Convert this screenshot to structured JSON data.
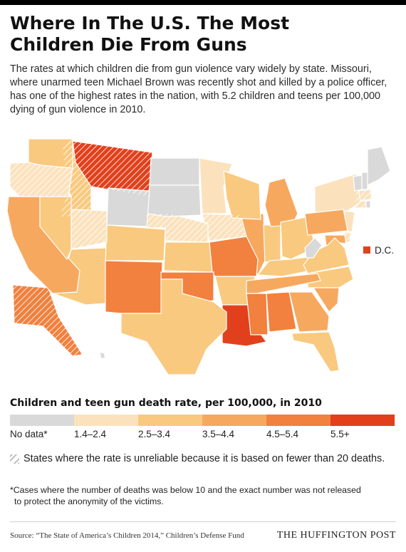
{
  "header": {
    "title_line1": "Where In The U.S. The Most",
    "title_line2": "Children Die From Guns",
    "intro": "The rates at which children die from gun violence vary widely by state. Missouri, where unarmed teen Michael Brown was recently shot and killed by a police officer, has one of the highest rates in the nation, with 5.2 children and teens per 100,000 dying of gun violence in 2010."
  },
  "map": {
    "dc_label": "D.C.",
    "dc_bin": 5,
    "colors": [
      "#d9d9d9",
      "#fbe2bd",
      "#f9c97f",
      "#f7a85f",
      "#f2803e",
      "#e2401c"
    ],
    "hatch_color": "#ffffff",
    "states": [
      {
        "id": "AL",
        "bin": 4,
        "hatched": false
      },
      {
        "id": "AK",
        "bin": 4,
        "hatched": true
      },
      {
        "id": "AZ",
        "bin": 2,
        "hatched": false
      },
      {
        "id": "AR",
        "bin": 2,
        "hatched": false
      },
      {
        "id": "CA",
        "bin": 3,
        "hatched": false
      },
      {
        "id": "CO",
        "bin": 2,
        "hatched": false
      },
      {
        "id": "CT",
        "bin": 1,
        "hatched": true
      },
      {
        "id": "DE",
        "bin": 1,
        "hatched": true
      },
      {
        "id": "FL",
        "bin": 2,
        "hatched": false
      },
      {
        "id": "GA",
        "bin": 3,
        "hatched": false
      },
      {
        "id": "HI",
        "bin": 0,
        "hatched": false
      },
      {
        "id": "ID",
        "bin": 2,
        "hatched": true
      },
      {
        "id": "IL",
        "bin": 3,
        "hatched": false
      },
      {
        "id": "IN",
        "bin": 2,
        "hatched": false
      },
      {
        "id": "IA",
        "bin": 1,
        "hatched": true
      },
      {
        "id": "KS",
        "bin": 2,
        "hatched": false
      },
      {
        "id": "KY",
        "bin": 2,
        "hatched": false
      },
      {
        "id": "LA",
        "bin": 5,
        "hatched": false
      },
      {
        "id": "ME",
        "bin": 0,
        "hatched": false
      },
      {
        "id": "MD",
        "bin": 3,
        "hatched": false
      },
      {
        "id": "MA",
        "bin": 1,
        "hatched": true
      },
      {
        "id": "MI",
        "bin": 3,
        "hatched": false
      },
      {
        "id": "MN",
        "bin": 1,
        "hatched": false
      },
      {
        "id": "MS",
        "bin": 4,
        "hatched": false
      },
      {
        "id": "MO",
        "bin": 4,
        "hatched": false
      },
      {
        "id": "MT",
        "bin": 5,
        "hatched": true
      },
      {
        "id": "NE",
        "bin": 1,
        "hatched": true
      },
      {
        "id": "NV",
        "bin": 2,
        "hatched": false
      },
      {
        "id": "NH",
        "bin": 0,
        "hatched": false
      },
      {
        "id": "NJ",
        "bin": 1,
        "hatched": false
      },
      {
        "id": "NM",
        "bin": 4,
        "hatched": false
      },
      {
        "id": "NY",
        "bin": 1,
        "hatched": false
      },
      {
        "id": "NC",
        "bin": 2,
        "hatched": false
      },
      {
        "id": "ND",
        "bin": 0,
        "hatched": false
      },
      {
        "id": "OH",
        "bin": 2,
        "hatched": false
      },
      {
        "id": "OK",
        "bin": 4,
        "hatched": false
      },
      {
        "id": "OR",
        "bin": 1,
        "hatched": true
      },
      {
        "id": "PA",
        "bin": 3,
        "hatched": false
      },
      {
        "id": "RI",
        "bin": 0,
        "hatched": false
      },
      {
        "id": "SC",
        "bin": 3,
        "hatched": false
      },
      {
        "id": "SD",
        "bin": 0,
        "hatched": false
      },
      {
        "id": "TN",
        "bin": 3,
        "hatched": false
      },
      {
        "id": "TX",
        "bin": 2,
        "hatched": false
      },
      {
        "id": "UT",
        "bin": 1,
        "hatched": true
      },
      {
        "id": "VT",
        "bin": 0,
        "hatched": false
      },
      {
        "id": "VA",
        "bin": 2,
        "hatched": false
      },
      {
        "id": "WA",
        "bin": 2,
        "hatched": false
      },
      {
        "id": "WV",
        "bin": 0,
        "hatched": false
      },
      {
        "id": "WI",
        "bin": 2,
        "hatched": false
      },
      {
        "id": "WY",
        "bin": 0,
        "hatched": false
      }
    ]
  },
  "legend": {
    "title": "Children and teen gun death rate, per 100,000, in 2010",
    "bins": [
      {
        "label": "No data*",
        "color": "#d9d9d9"
      },
      {
        "label": "1.4–2.4",
        "color": "#fbe2bd"
      },
      {
        "label": "2.5–3.4",
        "color": "#f9c97f"
      },
      {
        "label": "3.5–4.4",
        "color": "#f7a85f"
      },
      {
        "label": "4.5–5.4",
        "color": "#f2803e"
      },
      {
        "label": "5.5+",
        "color": "#e2401c"
      }
    ],
    "hatch_note": "States where the rate is unreliable because it is based on fewer than 20 deaths."
  },
  "footnote": {
    "line1": "*Cases where the number of deaths was below 10 and the exact number was not released",
    "line2": "to protect the anonymity of the victims."
  },
  "footer": {
    "source": "Source: “The State of America’s Children 2014,” Children’s Defense Fund",
    "brand": "THE HUFFINGTON POST"
  }
}
